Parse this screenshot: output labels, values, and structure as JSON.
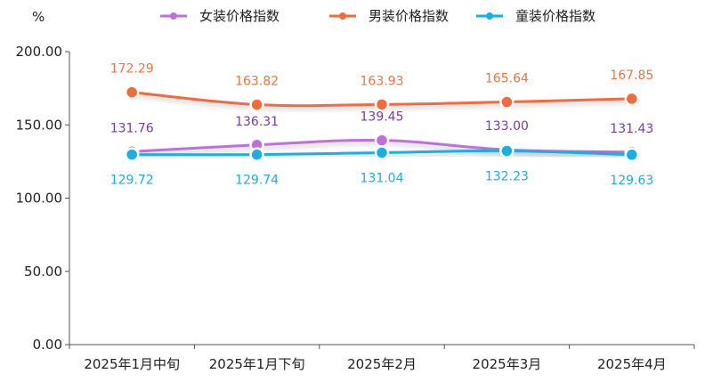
{
  "chart_data": {
    "type": "line",
    "unit_label": "%",
    "categories": [
      "2025年1月中旬",
      "2025年1月下旬",
      "2025年2月",
      "2025年3月",
      "2025年4月"
    ],
    "ylim": [
      0,
      200
    ],
    "yticks": [
      "0.00",
      "50.00",
      "100.00",
      "150.00",
      "200.00"
    ],
    "grid": false,
    "legend_position": "top",
    "series": [
      {
        "name": "女装价格指数",
        "color": "#bf6fdc",
        "label_color": "#7a3aa7",
        "values": [
          131.76,
          136.31,
          139.45,
          133.0,
          131.43
        ],
        "labels": [
          "131.76",
          "136.31",
          "139.45",
          "133.00",
          "131.43"
        ]
      },
      {
        "name": "男装价格指数",
        "color": "#f26b3c",
        "label_color": "#f0733f",
        "values": [
          172.29,
          163.82,
          163.93,
          165.64,
          167.85
        ],
        "labels": [
          "172.29",
          "163.82",
          "163.93",
          "165.64",
          "167.85"
        ]
      },
      {
        "name": "童装价格指数",
        "color": "#1aaee6",
        "label_color": "#1aaee6",
        "values": [
          129.72,
          129.74,
          131.04,
          132.23,
          129.63
        ],
        "labels": [
          "129.72",
          "129.74",
          "131.04",
          "132.23",
          "129.63"
        ]
      }
    ]
  }
}
